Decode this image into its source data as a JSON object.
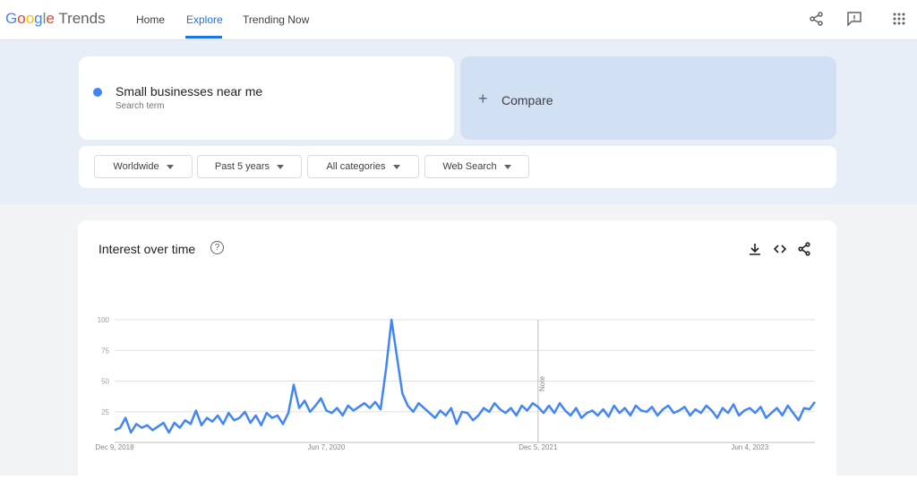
{
  "header": {
    "logo": "Google",
    "product": "Trends",
    "nav": [
      "Home",
      "Explore",
      "Trending Now"
    ]
  },
  "search": {
    "term": "Small businesses near me",
    "term_label": "Search term",
    "compare": "Compare"
  },
  "filters": [
    "Worldwide",
    "Past 5 years",
    "All categories",
    "Web Search"
  ],
  "chart_data": {
    "type": "line",
    "title": "Interest over time",
    "color": "#4285f4",
    "grid": true,
    "ylim": [
      0,
      100
    ],
    "yticks": [
      25,
      50,
      75,
      100
    ],
    "annotation": {
      "text": "Note",
      "x": "Dec 5, 2021"
    },
    "categories": [
      "Dec 9, 2018",
      null,
      null,
      null,
      null,
      null,
      null,
      null,
      null,
      null,
      null,
      null,
      null,
      null,
      null,
      null,
      null,
      null,
      null,
      null,
      null,
      null,
      null,
      null,
      null,
      null,
      null,
      null,
      null,
      null,
      null,
      null,
      null,
      null,
      null,
      null,
      null,
      null,
      null,
      "Jun 7, 2020",
      null,
      null,
      null,
      null,
      null,
      null,
      null,
      null,
      null,
      null,
      null,
      null,
      null,
      null,
      null,
      null,
      null,
      null,
      null,
      null,
      null,
      null,
      null,
      null,
      null,
      null,
      null,
      null,
      null,
      null,
      null,
      null,
      null,
      null,
      null,
      null,
      null,
      null,
      "Dec 5, 2021",
      null,
      null,
      null,
      null,
      null,
      null,
      null,
      null,
      null,
      null,
      null,
      null,
      null,
      null,
      null,
      null,
      null,
      null,
      null,
      null,
      null,
      null,
      null,
      null,
      null,
      null,
      null,
      null,
      null,
      null,
      null,
      null,
      null,
      null,
      null,
      null,
      null,
      null,
      "Jun 4, 2023",
      null,
      null,
      null,
      null,
      null,
      null,
      null,
      null,
      null,
      null,
      null,
      null
    ],
    "values": [
      10,
      12,
      20,
      8,
      15,
      12,
      14,
      10,
      13,
      16,
      8,
      16,
      12,
      18,
      15,
      26,
      14,
      20,
      17,
      22,
      15,
      24,
      18,
      20,
      25,
      16,
      22,
      14,
      24,
      20,
      22,
      15,
      24,
      47,
      28,
      34,
      25,
      30,
      36,
      26,
      24,
      28,
      22,
      30,
      26,
      29,
      32,
      28,
      33,
      27,
      60,
      100,
      70,
      40,
      30,
      25,
      32,
      28,
      24,
      20,
      26,
      22,
      28,
      15,
      25,
      24,
      18,
      22,
      28,
      25,
      32,
      27,
      24,
      28,
      22,
      30,
      26,
      32,
      29,
      24,
      30,
      24,
      32,
      26,
      22,
      28,
      20,
      24,
      26,
      22,
      27,
      21,
      30,
      24,
      28,
      22,
      30,
      26,
      25,
      29,
      22,
      27,
      30,
      24,
      26,
      29,
      22,
      27,
      24,
      30,
      26,
      20,
      28,
      24,
      31,
      22,
      26,
      28,
      24,
      29,
      20,
      24,
      28,
      22,
      30,
      24,
      18,
      28,
      27,
      33
    ]
  }
}
